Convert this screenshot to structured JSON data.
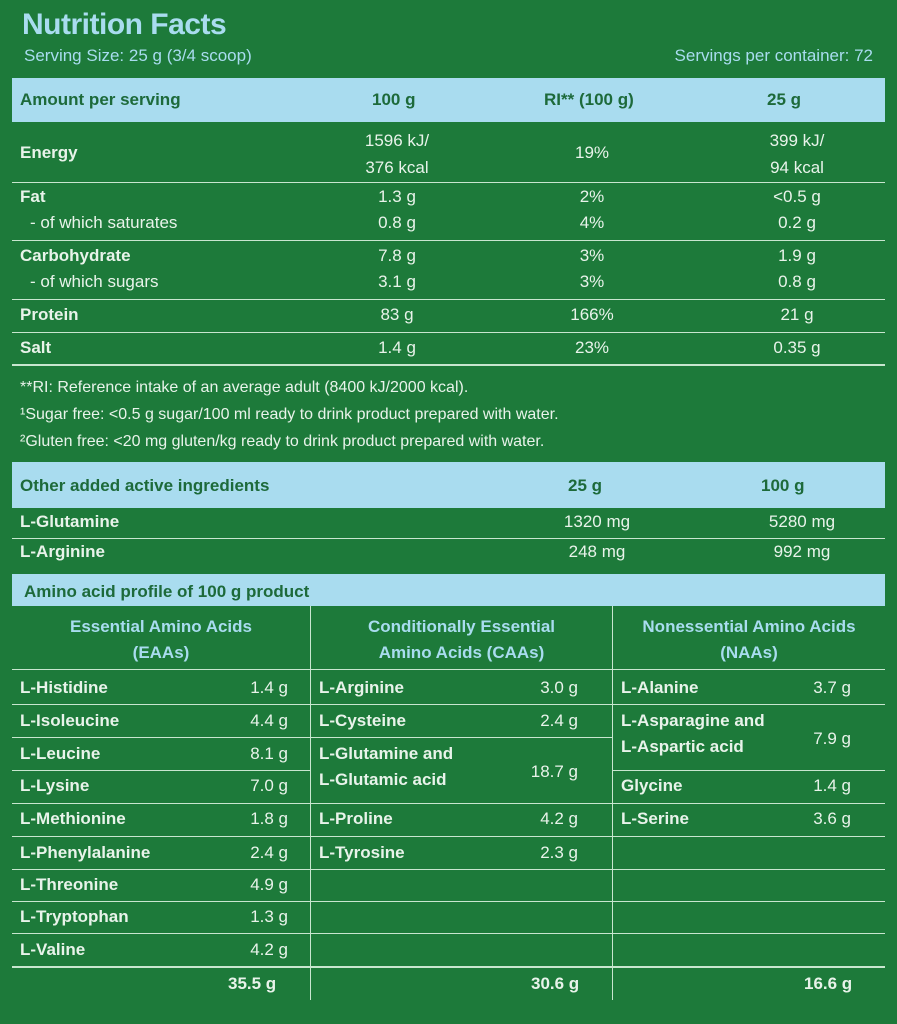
{
  "header": {
    "title": "Nutrition Facts",
    "serving_size": "Serving Size: 25 g (3/4 scoop)",
    "servings_per_container": "Servings per container: 72"
  },
  "nutrition": {
    "columns": [
      "Amount per serving",
      "100 g",
      "RI** (100 g)",
      "25 g"
    ],
    "rows": [
      {
        "label": "Energy",
        "v100_1": "1596 kJ/",
        "v100_2": "376 kcal",
        "ri": "19%",
        "v25_1": "399 kJ/",
        "v25_2": "94 kcal"
      },
      {
        "label": "Fat",
        "v100": "1.3 g",
        "ri": "2%",
        "v25": "<0.5 g"
      },
      {
        "label": "- of which saturates",
        "v100": "0.8 g",
        "ri": "4%",
        "v25": "0.2 g"
      },
      {
        "label": "Carbohydrate",
        "v100": "7.8 g",
        "ri": "3%",
        "v25": "1.9 g"
      },
      {
        "label": "- of which sugars",
        "v100": "3.1 g",
        "ri": "3%",
        "v25": "0.8 g"
      },
      {
        "label": "Protein",
        "v100": "83 g",
        "ri": "166%",
        "v25": "21 g"
      },
      {
        "label": "Salt",
        "v100": "1.4 g",
        "ri": "23%",
        "v25": "0.35 g"
      }
    ]
  },
  "notes": [
    "**RI: Reference intake of an average adult (8400 kJ/2000 kcal).",
    "¹Sugar free: <0.5 g sugar/100 ml ready to drink product prepared with water.",
    "²Gluten free: <20 mg gluten/kg ready to drink product prepared with water."
  ],
  "active": {
    "columns": [
      "Other added active ingredients",
      "25 g",
      "100 g"
    ],
    "rows": [
      {
        "label": "L-Glutamine",
        "v25": "1320 mg",
        "v100": "5280 mg"
      },
      {
        "label": "L-Arginine",
        "v25": "248 mg",
        "v100": "992 mg"
      }
    ]
  },
  "amino": {
    "title": "Amino acid profile of 100 g product",
    "eaa": {
      "head1": "Essential Amino Acids",
      "head2": "(EAAs)",
      "rows": [
        {
          "name": "L-Histidine",
          "value": "1.4 g"
        },
        {
          "name": "L-Isoleucine",
          "value": "4.4 g"
        },
        {
          "name": "L-Leucine",
          "value": "8.1 g"
        },
        {
          "name": "L-Lysine",
          "value": "7.0 g"
        },
        {
          "name": "L-Methionine",
          "value": "1.8 g"
        },
        {
          "name": "L-Phenylalanine",
          "value": "2.4 g"
        },
        {
          "name": "L-Threonine",
          "value": "4.9 g"
        },
        {
          "name": "L-Tryptophan",
          "value": "1.3 g"
        },
        {
          "name": "L-Valine",
          "value": "4.2 g"
        }
      ],
      "total": "35.5 g"
    },
    "caa": {
      "head1": "Conditionally Essential",
      "head2": "Amino Acids (CAAs)",
      "rows": [
        {
          "name": "L-Arginine",
          "value": "3.0 g"
        },
        {
          "name": "L-Cysteine",
          "value": "2.4 g"
        },
        {
          "name": "L-Glutamine and",
          "name2": "L-Glutamic acid",
          "value": "18.7 g"
        },
        {
          "name": "L-Proline",
          "value": "4.2 g"
        },
        {
          "name": "L-Tyrosine",
          "value": "2.3 g"
        }
      ],
      "total": "30.6 g"
    },
    "naa": {
      "head1": "Nonessential Amino Acids",
      "head2": "(NAAs)",
      "rows": [
        {
          "name": "L-Alanine",
          "value": "3.7 g"
        },
        {
          "name": "L-Asparagine and",
          "name2": "L-Aspartic acid",
          "value": "7.9 g"
        },
        {
          "name": "Glycine",
          "value": "1.4 g"
        },
        {
          "name": "L-Serine",
          "value": "3.6 g"
        }
      ],
      "total": "16.6 g"
    }
  }
}
